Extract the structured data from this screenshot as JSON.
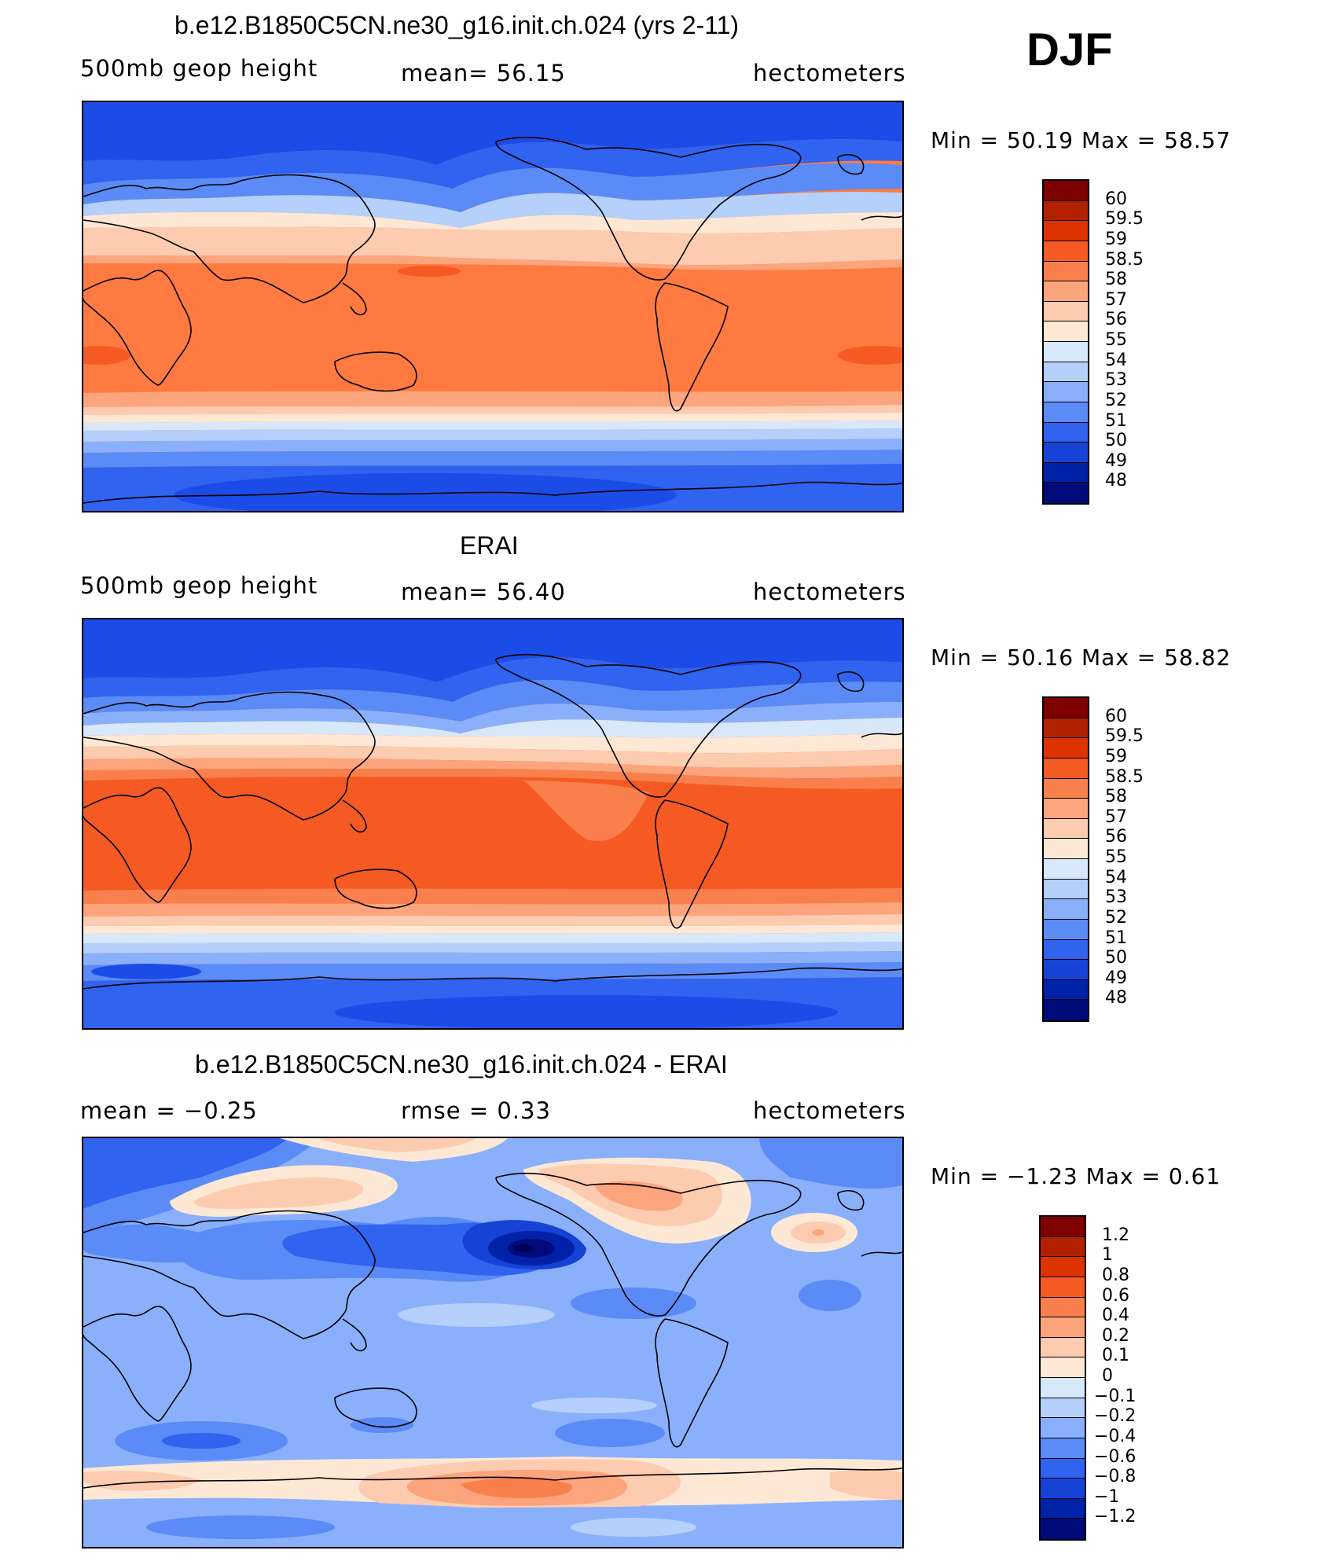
{
  "season": "DJF",
  "panels": [
    {
      "title": "b.e12.B1850C5CN.ne30_g16.init.ch.024 (yrs 2-11)",
      "left_label": "500mb  geop  height",
      "center_label": "mean=   56.15",
      "right_label": "hectometers",
      "minmax": "Min  =    50.19  Max  =    58.57",
      "colorbar": {
        "labels": [
          "60",
          "59.5",
          "59",
          "58.5",
          "58",
          "57",
          "56",
          "55",
          "54",
          "53",
          "52",
          "51",
          "50",
          "49",
          "48"
        ],
        "colors": [
          "#7f0000",
          "#b22000",
          "#dd3300",
          "#f55a22",
          "#f9804c",
          "#fca47c",
          "#fdcbb0",
          "#fde8d5",
          "#d8e8fb",
          "#b4d0fb",
          "#8ab0fb",
          "#5a8bf6",
          "#2f63f0",
          "#1642d6",
          "#0022a8",
          "#000a7a"
        ]
      }
    },
    {
      "title": "ERAI",
      "left_label": "500mb  geop  height",
      "center_label": "mean=   56.40",
      "right_label": "hectometers",
      "minmax": "Min  =    50.16  Max  =    58.82",
      "colorbar": {
        "labels": [
          "60",
          "59.5",
          "59",
          "58.5",
          "58",
          "57",
          "56",
          "55",
          "54",
          "53",
          "52",
          "51",
          "50",
          "49",
          "48"
        ],
        "colors": [
          "#7f0000",
          "#b22000",
          "#dd3300",
          "#f55a22",
          "#f9804c",
          "#fca47c",
          "#fdcbb0",
          "#fde8d5",
          "#d8e8fb",
          "#b4d0fb",
          "#8ab0fb",
          "#5a8bf6",
          "#2f63f0",
          "#1642d6",
          "#0022a8",
          "#000a7a"
        ]
      }
    },
    {
      "title": "b.e12.B1850C5CN.ne30_g16.init.ch.024 - ERAI",
      "left_label": "mean  =    −0.25",
      "center_label": "rmse  =     0.33",
      "right_label": "hectometers",
      "minmax": "Min  =   −1.23  Max  =     0.61",
      "colorbar": {
        "labels": [
          "1.2",
          "1",
          "0.8",
          "0.6",
          "0.4",
          "0.2",
          "0.1",
          "0",
          "−0.1",
          "−0.2",
          "−0.4",
          "−0.6",
          "−0.8",
          "−1",
          "−1.2"
        ],
        "colors": [
          "#7f0000",
          "#b22000",
          "#dd3300",
          "#f55a22",
          "#f9804c",
          "#fca47c",
          "#fdcbb0",
          "#fde8d5",
          "#d8e8fb",
          "#b4d0fb",
          "#8ab0fb",
          "#5a8bf6",
          "#2f63f0",
          "#1642d6",
          "#0022a8",
          "#000a7a"
        ]
      }
    }
  ]
}
